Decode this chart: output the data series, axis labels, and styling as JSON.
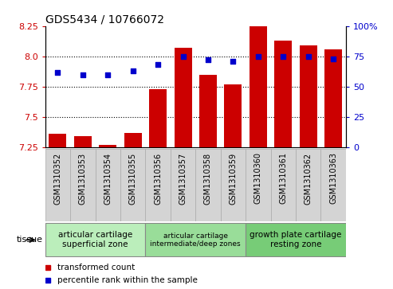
{
  "title": "GDS5434 / 10766072",
  "samples": [
    "GSM1310352",
    "GSM1310353",
    "GSM1310354",
    "GSM1310355",
    "GSM1310356",
    "GSM1310357",
    "GSM1310358",
    "GSM1310359",
    "GSM1310360",
    "GSM1310361",
    "GSM1310362",
    "GSM1310363"
  ],
  "bar_values": [
    7.36,
    7.34,
    7.27,
    7.37,
    7.73,
    8.07,
    7.85,
    7.77,
    8.25,
    8.13,
    8.09,
    8.06
  ],
  "dot_percentiles": [
    62,
    60,
    60,
    63,
    68,
    75,
    72,
    71,
    75,
    75,
    75,
    73
  ],
  "ylim_left": [
    7.25,
    8.25
  ],
  "ylim_right": [
    0,
    100
  ],
  "yticks_left": [
    7.25,
    7.5,
    7.75,
    8.0,
    8.25
  ],
  "yticks_right": [
    0,
    25,
    50,
    75,
    100
  ],
  "bar_color": "#cc0000",
  "dot_color": "#0000cc",
  "bar_bottom": 7.25,
  "hlines": [
    7.5,
    7.75,
    8.0
  ],
  "groups": [
    {
      "label": "articular cartilage\nsuperficial zone",
      "start": 0,
      "end": 3,
      "color": "#bbeebb",
      "fontsize": 7.5
    },
    {
      "label": "articular cartilage\nintermediate/deep zones",
      "start": 4,
      "end": 7,
      "color": "#99dd99",
      "fontsize": 6.5
    },
    {
      "label": "growth plate cartilage\nresting zone",
      "start": 8,
      "end": 11,
      "color": "#77cc77",
      "fontsize": 7.5
    }
  ],
  "tissue_label": "tissue",
  "legend_bar_label": "transformed count",
  "legend_dot_label": "percentile rank within the sample",
  "title_fontsize": 10,
  "tick_fontsize": 7,
  "axis_color_left": "#cc0000",
  "axis_color_right": "#0000cc",
  "xtick_bg_color": "#d4d4d4",
  "col_border_color": "#aaaaaa"
}
